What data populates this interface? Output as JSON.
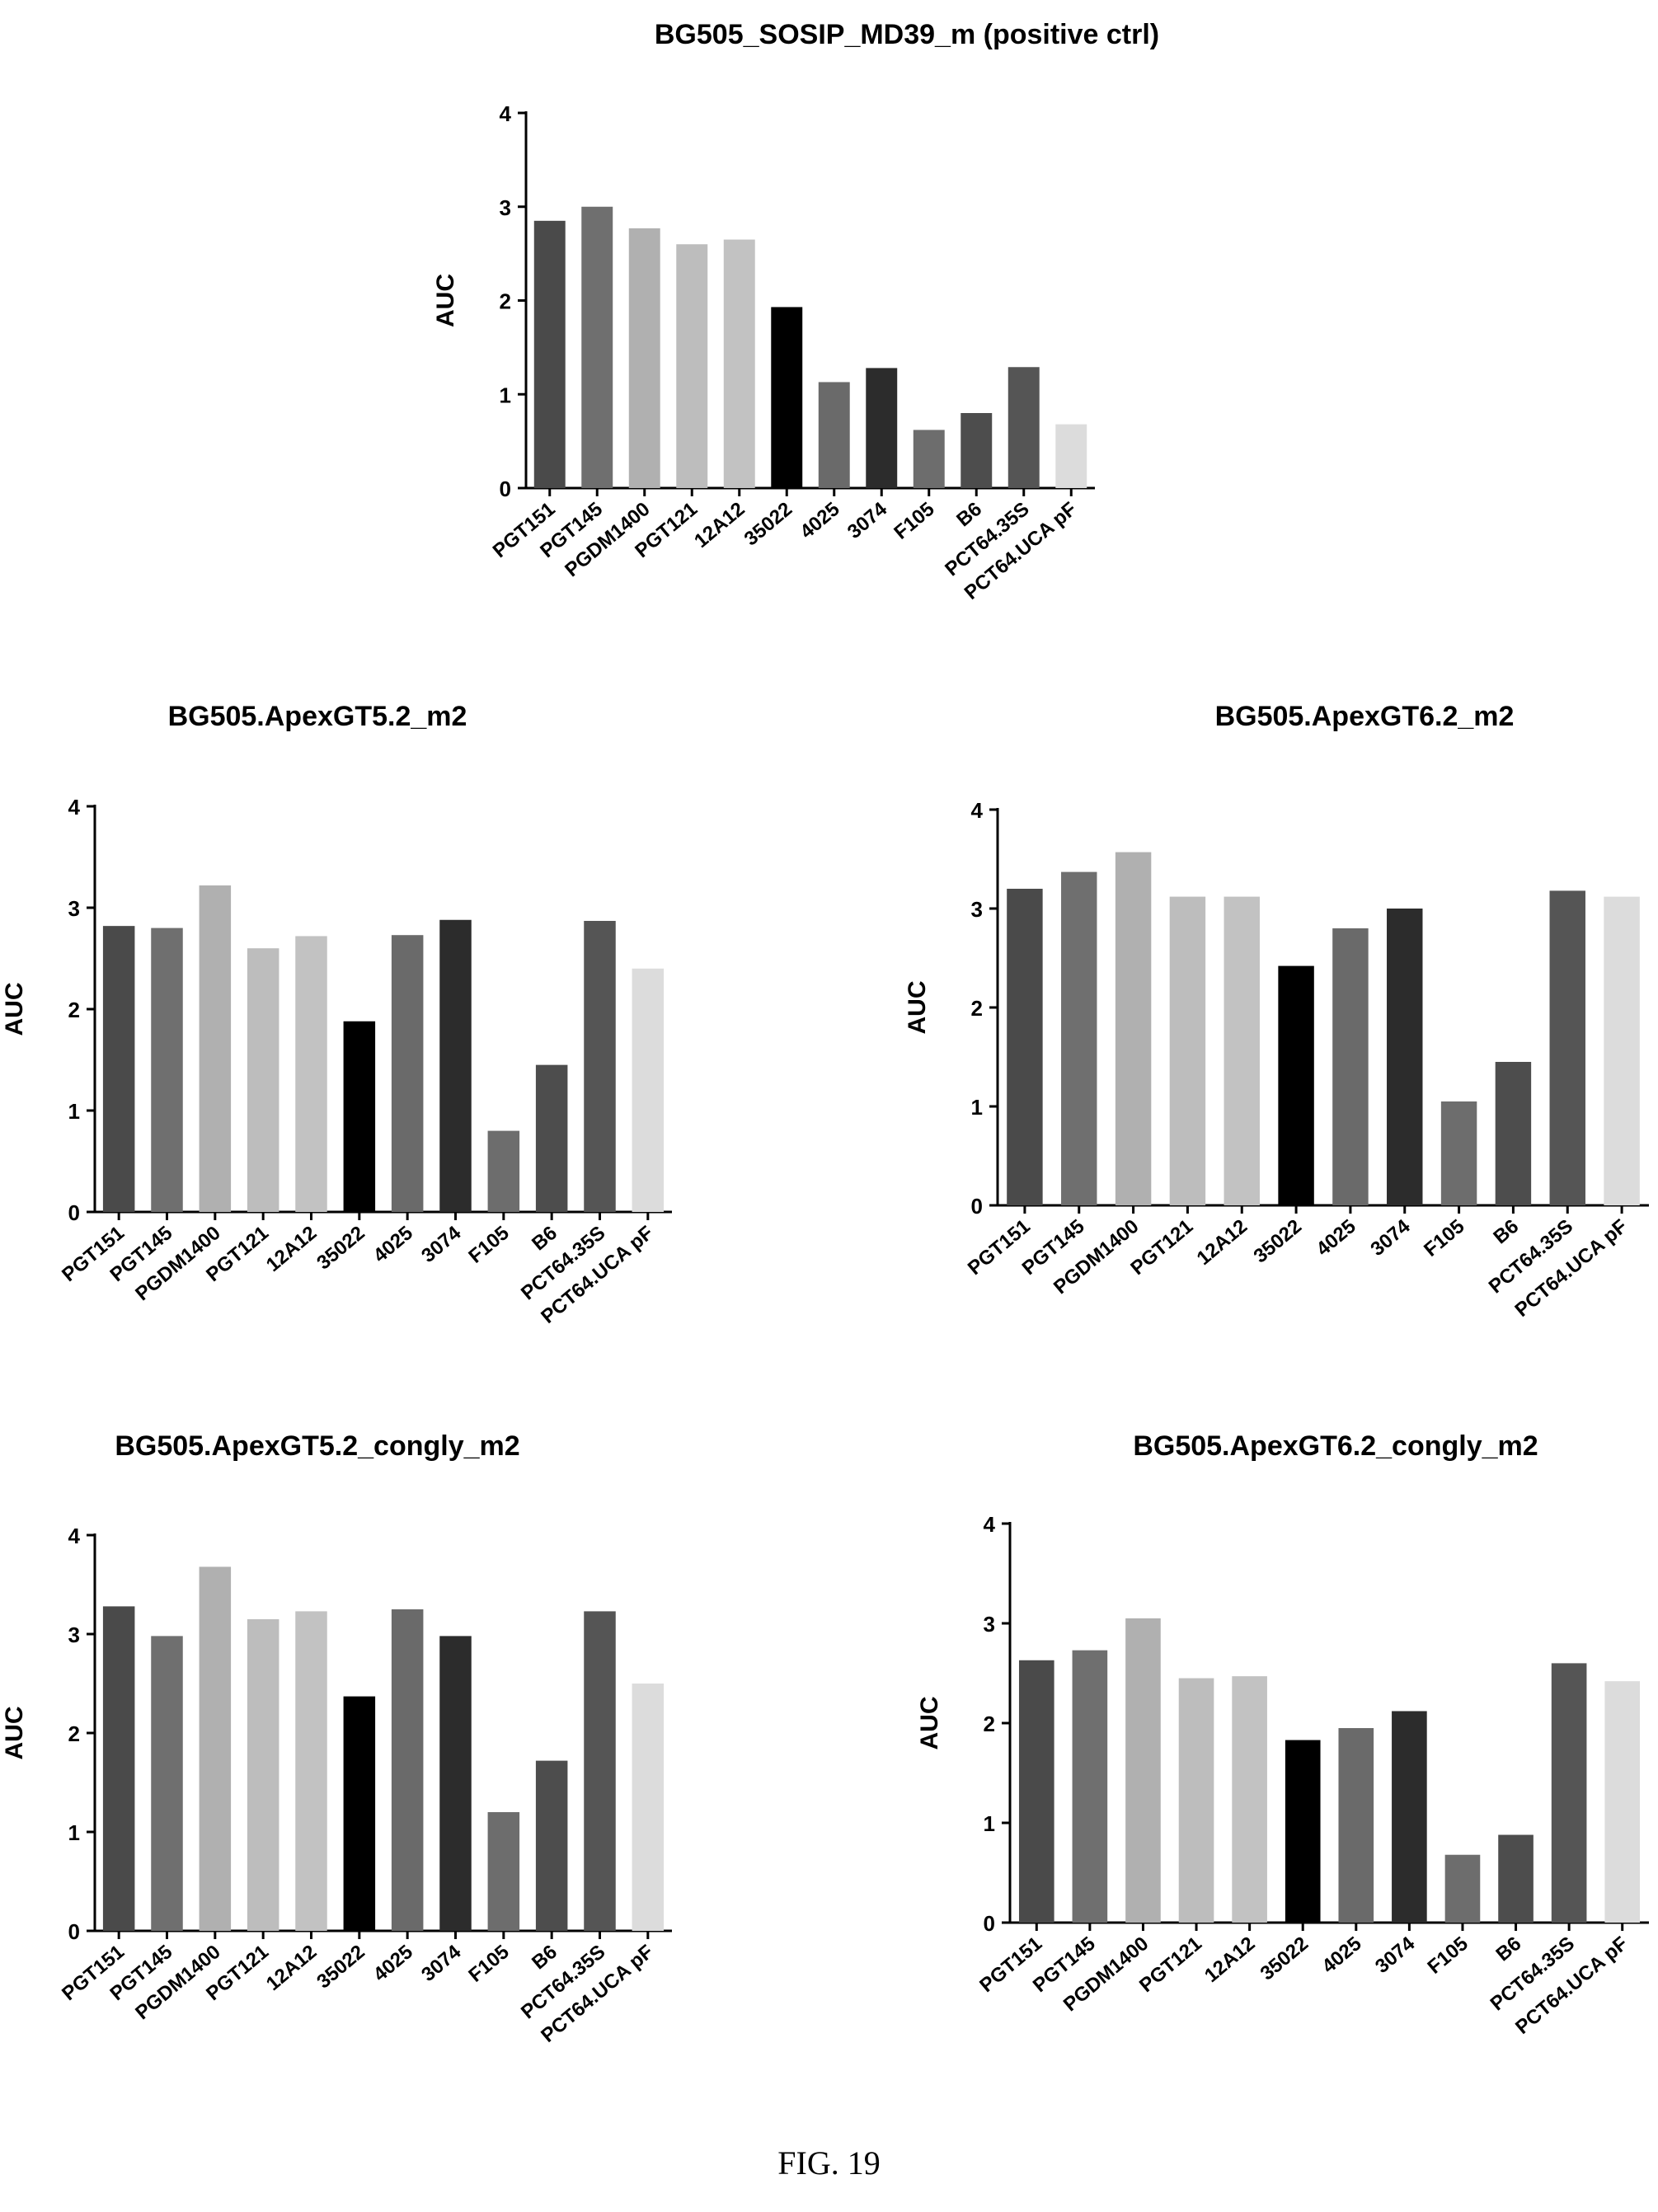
{
  "figure": {
    "caption": "FIG. 19"
  },
  "chart_data": [
    {
      "type": "bar",
      "title": "BG505_SOSIP_MD39_m (positive ctrl)",
      "ylabel": "AUC",
      "ylim": [
        0,
        4
      ],
      "yticks": [
        0,
        1,
        2,
        3,
        4
      ],
      "categories": [
        "PGT151",
        "PGT145",
        "PGDM1400",
        "PGT121",
        "12A12",
        "35022",
        "4025",
        "3074",
        "F105",
        "B6",
        "PCT64.35S",
        "PCT64.UCA pF"
      ],
      "values": [
        2.85,
        3.0,
        2.77,
        2.6,
        2.65,
        1.93,
        1.13,
        1.28,
        0.62,
        0.8,
        1.29,
        0.68
      ],
      "bar_colors": [
        "#4a4a4a",
        "#6f6f6f",
        "#b0b0b0",
        "#bdbdbd",
        "#c2c2c2",
        "#000000",
        "#6a6a6a",
        "#2c2c2c",
        "#6d6d6d",
        "#4d4d4d",
        "#555555",
        "#dcdcdc"
      ],
      "grid": false,
      "legend": "none"
    },
    {
      "type": "bar",
      "title": "BG505.ApexGT5.2_m2",
      "ylabel": "AUC",
      "ylim": [
        0,
        4
      ],
      "yticks": [
        0,
        1,
        2,
        3,
        4
      ],
      "categories": [
        "PGT151",
        "PGT145",
        "PGDM1400",
        "PGT121",
        "12A12",
        "35022",
        "4025",
        "3074",
        "F105",
        "B6",
        "PCT64.35S",
        "PCT64.UCA pF"
      ],
      "values": [
        2.82,
        2.8,
        3.22,
        2.6,
        2.72,
        1.88,
        2.73,
        2.88,
        0.8,
        1.45,
        2.87,
        2.4
      ],
      "bar_colors": [
        "#4a4a4a",
        "#6f6f6f",
        "#b0b0b0",
        "#bdbdbd",
        "#c2c2c2",
        "#000000",
        "#6a6a6a",
        "#2c2c2c",
        "#6d6d6d",
        "#4d4d4d",
        "#555555",
        "#dcdcdc"
      ],
      "grid": false,
      "legend": "none"
    },
    {
      "type": "bar",
      "title": "BG505.ApexGT6.2_m2",
      "ylabel": "AUC",
      "ylim": [
        0,
        4
      ],
      "yticks": [
        0,
        1,
        2,
        3,
        4
      ],
      "categories": [
        "PGT151",
        "PGT145",
        "PGDM1400",
        "PGT121",
        "12A12",
        "35022",
        "4025",
        "3074",
        "F105",
        "B6",
        "PCT64.35S",
        "PCT64.UCA pF"
      ],
      "values": [
        3.2,
        3.37,
        3.57,
        3.12,
        3.12,
        2.42,
        2.8,
        3.0,
        1.05,
        1.45,
        3.18,
        3.12
      ],
      "bar_colors": [
        "#4a4a4a",
        "#6f6f6f",
        "#b0b0b0",
        "#bdbdbd",
        "#c2c2c2",
        "#000000",
        "#6a6a6a",
        "#2c2c2c",
        "#6d6d6d",
        "#4d4d4d",
        "#555555",
        "#dcdcdc"
      ],
      "grid": false,
      "legend": "none"
    },
    {
      "type": "bar",
      "title": "BG505.ApexGT5.2_congly_m2",
      "ylabel": "AUC",
      "ylim": [
        0,
        4
      ],
      "yticks": [
        0,
        1,
        2,
        3,
        4
      ],
      "categories": [
        "PGT151",
        "PGT145",
        "PGDM1400",
        "PGT121",
        "12A12",
        "35022",
        "4025",
        "3074",
        "F105",
        "B6",
        "PCT64.35S",
        "PCT64.UCA pF"
      ],
      "values": [
        3.28,
        2.98,
        3.68,
        3.15,
        3.23,
        2.37,
        3.25,
        2.98,
        1.2,
        1.72,
        3.23,
        2.5
      ],
      "bar_colors": [
        "#4a4a4a",
        "#6f6f6f",
        "#b0b0b0",
        "#bdbdbd",
        "#c2c2c2",
        "#000000",
        "#6a6a6a",
        "#2c2c2c",
        "#6d6d6d",
        "#4d4d4d",
        "#555555",
        "#dcdcdc"
      ],
      "grid": false,
      "legend": "none"
    },
    {
      "type": "bar",
      "title": "BG505.ApexGT6.2_congly_m2",
      "ylabel": "AUC",
      "ylim": [
        0,
        4
      ],
      "yticks": [
        0,
        1,
        2,
        3,
        4
      ],
      "categories": [
        "PGT151",
        "PGT145",
        "PGDM1400",
        "PGT121",
        "12A12",
        "35022",
        "4025",
        "3074",
        "F105",
        "B6",
        "PCT64.35S",
        "PCT64.UCA pF"
      ],
      "values": [
        2.63,
        2.73,
        3.05,
        2.45,
        2.47,
        1.83,
        1.95,
        2.12,
        0.68,
        0.88,
        2.6,
        2.42
      ],
      "bar_colors": [
        "#4a4a4a",
        "#6f6f6f",
        "#b0b0b0",
        "#bdbdbd",
        "#c2c2c2",
        "#000000",
        "#6a6a6a",
        "#2c2c2c",
        "#6d6d6d",
        "#4d4d4d",
        "#555555",
        "#dcdcdc"
      ],
      "grid": false,
      "legend": "none"
    }
  ]
}
